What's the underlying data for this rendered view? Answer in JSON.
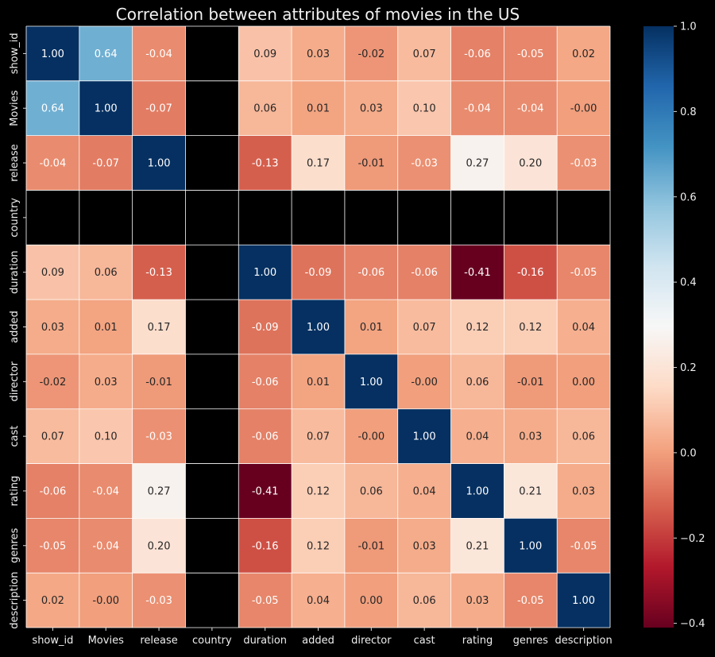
{
  "chart_data": {
    "type": "heatmap",
    "title": "Correlation between attributes of movies in the US",
    "xlabel": "",
    "ylabel": "",
    "x_labels": [
      "show_id",
      "Movies",
      "release",
      "country",
      "duration",
      "added",
      "director",
      "cast",
      "rating",
      "genres",
      "description"
    ],
    "y_labels": [
      "show_id",
      "Movies",
      "release",
      "country",
      "duration",
      "added",
      "director",
      "cast",
      "rating",
      "genres",
      "description"
    ],
    "values": [
      [
        1.0,
        0.64,
        -0.04,
        null,
        0.09,
        0.03,
        -0.02,
        0.07,
        -0.06,
        -0.05,
        0.02
      ],
      [
        0.64,
        1.0,
        -0.07,
        null,
        0.06,
        0.01,
        0.03,
        0.1,
        -0.04,
        -0.04,
        -0.0
      ],
      [
        -0.04,
        -0.07,
        1.0,
        null,
        -0.13,
        0.17,
        -0.01,
        -0.03,
        0.27,
        0.2,
        -0.03
      ],
      [
        null,
        null,
        null,
        null,
        null,
        null,
        null,
        null,
        null,
        null,
        null
      ],
      [
        0.09,
        0.06,
        -0.13,
        null,
        1.0,
        -0.09,
        -0.06,
        -0.06,
        -0.41,
        -0.16,
        -0.05
      ],
      [
        0.03,
        0.01,
        0.17,
        null,
        -0.09,
        1.0,
        0.01,
        0.07,
        0.12,
        0.12,
        0.04
      ],
      [
        -0.02,
        0.03,
        -0.01,
        null,
        -0.06,
        0.01,
        1.0,
        -0.0,
        0.06,
        -0.01,
        0.0
      ],
      [
        0.07,
        0.1,
        -0.03,
        null,
        -0.06,
        0.07,
        -0.0,
        1.0,
        0.04,
        0.03,
        0.06
      ],
      [
        -0.06,
        -0.04,
        0.27,
        null,
        -0.41,
        0.12,
        0.06,
        0.04,
        1.0,
        0.21,
        0.03
      ],
      [
        -0.05,
        -0.04,
        0.2,
        null,
        -0.16,
        0.12,
        -0.01,
        0.03,
        0.21,
        1.0,
        -0.05
      ],
      [
        0.02,
        -0.0,
        -0.03,
        null,
        -0.05,
        0.04,
        0.0,
        0.06,
        0.03,
        -0.05,
        1.0
      ]
    ],
    "colormap": "RdBu",
    "vmin": -0.41,
    "vmax": 1.0,
    "colorbar_ticks": [
      "1.0",
      "0.8",
      "0.6",
      "0.4",
      "0.2",
      "0.0",
      "−0.2",
      "−0.4"
    ],
    "colorbar_tick_values": [
      1.0,
      0.8,
      0.6,
      0.4,
      0.2,
      0.0,
      -0.2,
      -0.4
    ],
    "grid": false,
    "legend": "colorbar-right",
    "background": "#000000"
  }
}
